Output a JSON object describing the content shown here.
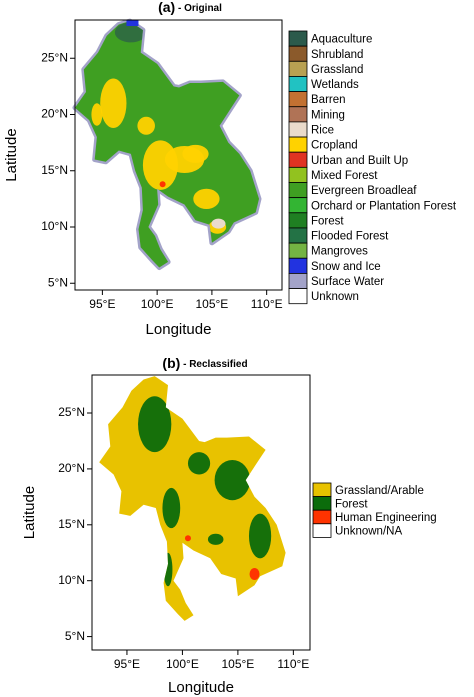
{
  "panels": [
    {
      "label": "(a)",
      "title": " - Original",
      "x_label": "Longitude",
      "y_label": "Latitude",
      "xlim": [
        92.5,
        111.4
      ],
      "ylim": [
        4.4,
        28.4
      ],
      "xticks": [
        {
          "value": 95,
          "label": "95°E"
        },
        {
          "value": 100,
          "label": "100°E"
        },
        {
          "value": 105,
          "label": "105°E"
        },
        {
          "value": 110,
          "label": "110°E"
        }
      ],
      "yticks": [
        {
          "value": 5,
          "label": "5°N"
        },
        {
          "value": 10,
          "label": "10°N"
        },
        {
          "value": 15,
          "label": "15°N"
        },
        {
          "value": 20,
          "label": "20°N"
        },
        {
          "value": 25,
          "label": "25°N"
        }
      ],
      "legend": [
        {
          "name": "Aquaculture",
          "color": "#2b5a4b"
        },
        {
          "name": "Shrubland",
          "color": "#8b5a2b"
        },
        {
          "name": "Grassland",
          "color": "#b8a152"
        },
        {
          "name": "Wetlands",
          "color": "#21c2c2"
        },
        {
          "name": "Barren",
          "color": "#c27132"
        },
        {
          "name": "Mining",
          "color": "#b07356"
        },
        {
          "name": "Rice",
          "color": "#eadbcb"
        },
        {
          "name": "Cropland",
          "color": "#ffd200"
        },
        {
          "name": "Urban and Built Up",
          "color": "#e03322"
        },
        {
          "name": "Mixed Forest",
          "color": "#92c21f"
        },
        {
          "name": "Evergreen Broadleaf",
          "color": "#3f9f22"
        },
        {
          "name": "Orchard or Plantation Forest",
          "color": "#33b533"
        },
        {
          "name": "Forest",
          "color": "#1f7f22"
        },
        {
          "name": "Flooded Forest",
          "color": "#237245"
        },
        {
          "name": "Mangroves",
          "color": "#74b443"
        },
        {
          "name": "Snow and Ice",
          "color": "#2233e0"
        },
        {
          "name": "Surface Water",
          "color": "#a3a3c9"
        },
        {
          "name": "Unknown",
          "color": "#ffffff"
        }
      ]
    },
    {
      "label": "(b)",
      "title": " - Reclassified",
      "x_label": "Longitude",
      "y_label": "Latitude",
      "xlim": [
        91.85,
        111.5
      ],
      "ylim": [
        3.8,
        28.4
      ],
      "xticks": [
        {
          "value": 95,
          "label": "95°E"
        },
        {
          "value": 100,
          "label": "100°E"
        },
        {
          "value": 105,
          "label": "105°E"
        },
        {
          "value": 110,
          "label": "110°E"
        }
      ],
      "yticks": [
        {
          "value": 5,
          "label": "5°N"
        },
        {
          "value": 10,
          "label": "10°N"
        },
        {
          "value": 15,
          "label": "15°N"
        },
        {
          "value": 20,
          "label": "20°N"
        },
        {
          "value": 25,
          "label": "25°N"
        }
      ],
      "legend": [
        {
          "name": "Grassland/Arable",
          "color": "#e8c200"
        },
        {
          "name": "Forest",
          "color": "#0b6c0b"
        },
        {
          "name": "Human Engineering",
          "color": "#ff3300"
        },
        {
          "name": "Unknown/NA",
          "color": "#ffffff"
        }
      ]
    }
  ]
}
